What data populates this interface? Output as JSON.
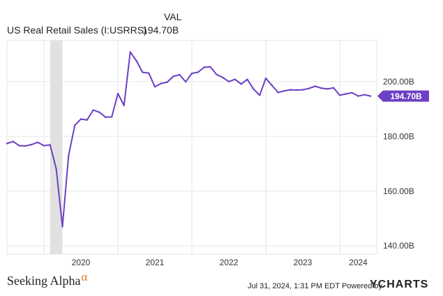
{
  "legend": {
    "column_header": "VAL",
    "series_name": "US Real Retail Sales (I:USRRS)",
    "series_value": "194.70B"
  },
  "footer": {
    "brand": "Seeking Alpha",
    "brand_symbol": "α",
    "timestamp": "Jul 31, 2024, 1:31 PM EDT",
    "powered_by": "Powered by",
    "logo": "YCHARTS"
  },
  "colors": {
    "line": "#6c3fc4",
    "recession_band": "#e1e1e1",
    "grid": "#e6e6e6",
    "badge": "#6c3fc4"
  },
  "chart_data": {
    "type": "line",
    "x_tick_labels": [
      "2020",
      "2021",
      "2022",
      "2023",
      "2024"
    ],
    "y_tick_labels": [
      "140.00B",
      "160.00B",
      "180.00B",
      "200.00B"
    ],
    "y_ticks": [
      140,
      160,
      180,
      200
    ],
    "ylim": [
      137,
      215
    ],
    "xlim": [
      "2019-07",
      "2024-07"
    ],
    "grid": true,
    "recession_band": [
      "2020-02",
      "2020-04"
    ],
    "last_value_label": "194.70B",
    "series": [
      {
        "name": "US Real Retail Sales (I:USRRS)",
        "unit": "billions USD",
        "points": [
          [
            "2019-07",
            177.4
          ],
          [
            "2019-08",
            178.1
          ],
          [
            "2019-09",
            176.6
          ],
          [
            "2019-10",
            176.5
          ],
          [
            "2019-11",
            177.0
          ],
          [
            "2019-12",
            177.8
          ],
          [
            "2020-01",
            176.6
          ],
          [
            "2020-02",
            176.9
          ],
          [
            "2020-03",
            168.0
          ],
          [
            "2020-04",
            147.0
          ],
          [
            "2020-05",
            173.0
          ],
          [
            "2020-06",
            184.0
          ],
          [
            "2020-07",
            186.3
          ],
          [
            "2020-08",
            186.0
          ],
          [
            "2020-09",
            189.6
          ],
          [
            "2020-10",
            188.8
          ],
          [
            "2020-11",
            187.0
          ],
          [
            "2020-12",
            187.1
          ],
          [
            "2021-01",
            195.6
          ],
          [
            "2021-02",
            191.3
          ],
          [
            "2021-03",
            210.8
          ],
          [
            "2021-04",
            207.6
          ],
          [
            "2021-05",
            203.4
          ],
          [
            "2021-06",
            203.1
          ],
          [
            "2021-07",
            198.1
          ],
          [
            "2021-08",
            199.3
          ],
          [
            "2021-09",
            199.8
          ],
          [
            "2021-10",
            201.9
          ],
          [
            "2021-11",
            202.5
          ],
          [
            "2021-12",
            199.9
          ],
          [
            "2022-01",
            203.0
          ],
          [
            "2022-02",
            203.4
          ],
          [
            "2022-03",
            205.2
          ],
          [
            "2022-04",
            205.4
          ],
          [
            "2022-05",
            202.6
          ],
          [
            "2022-06",
            201.5
          ],
          [
            "2022-07",
            200.0
          ],
          [
            "2022-08",
            200.8
          ],
          [
            "2022-09",
            199.1
          ],
          [
            "2022-10",
            200.8
          ],
          [
            "2022-11",
            197.3
          ],
          [
            "2022-12",
            195.0
          ],
          [
            "2023-01",
            201.2
          ],
          [
            "2023-02",
            198.6
          ],
          [
            "2023-03",
            196.0
          ],
          [
            "2023-04",
            196.6
          ],
          [
            "2023-05",
            197.0
          ],
          [
            "2023-06",
            196.9
          ],
          [
            "2023-07",
            197.0
          ],
          [
            "2023-08",
            197.5
          ],
          [
            "2023-09",
            198.3
          ],
          [
            "2023-10",
            197.6
          ],
          [
            "2023-11",
            197.3
          ],
          [
            "2023-12",
            197.7
          ],
          [
            "2024-01",
            195.0
          ],
          [
            "2024-02",
            195.5
          ],
          [
            "2024-03",
            195.9
          ],
          [
            "2024-04",
            194.7
          ],
          [
            "2024-05",
            195.2
          ],
          [
            "2024-06",
            194.7
          ]
        ]
      }
    ]
  }
}
